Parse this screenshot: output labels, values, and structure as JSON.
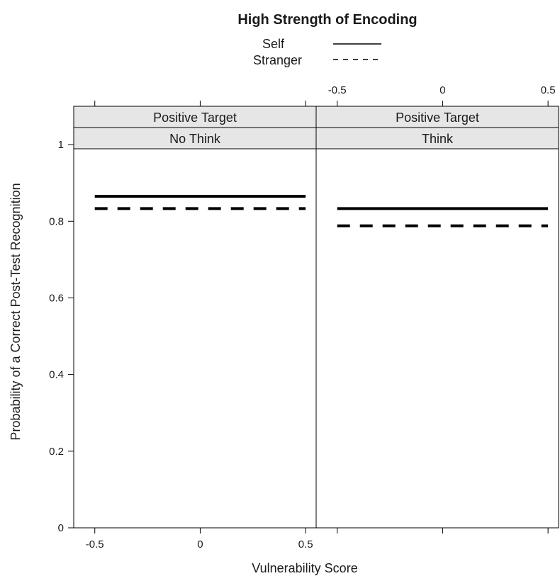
{
  "chart_data": {
    "type": "line",
    "title": "High Strength of Encoding",
    "xlabel": "Vulnerability Score",
    "ylabel": "Probability of a Correct Post-Test Recognition",
    "xlim": [
      -0.6,
      0.55
    ],
    "ylim": [
      0,
      1.1
    ],
    "x_ticks": [
      -0.5,
      0,
      0.5
    ],
    "x_tick_labels": [
      "-0.5",
      "0",
      "0.5"
    ],
    "y_ticks": [
      0,
      0.2,
      0.4,
      0.6,
      0.8,
      1
    ],
    "y_tick_labels": [
      "0",
      "0.2",
      "0.4",
      "0.6",
      "0.8",
      "1"
    ],
    "legend": {
      "placement": "top",
      "entries": [
        {
          "name": "Self",
          "line_style": "solid"
        },
        {
          "name": "Stranger",
          "line_style": "dashed"
        }
      ]
    },
    "panels": [
      {
        "strip_top": "Positive Target",
        "strip_bottom": "No Think",
        "series": [
          {
            "name": "Self",
            "x": [
              -0.5,
              0.5
            ],
            "y": [
              0.865,
              0.865
            ]
          },
          {
            "name": "Stranger",
            "x": [
              -0.5,
              0.5
            ],
            "y": [
              0.833,
              0.833
            ]
          }
        ]
      },
      {
        "strip_top": "Positive Target",
        "strip_bottom": "Think",
        "series": [
          {
            "name": "Self",
            "x": [
              -0.5,
              0.5
            ],
            "y": [
              0.833,
              0.833
            ]
          },
          {
            "name": "Stranger",
            "x": [
              -0.5,
              0.5
            ],
            "y": [
              0.788,
              0.788
            ]
          }
        ]
      }
    ],
    "colors": {
      "line": "#000000",
      "strip_bg": "#e6e6e6",
      "frame": "#000000"
    }
  }
}
